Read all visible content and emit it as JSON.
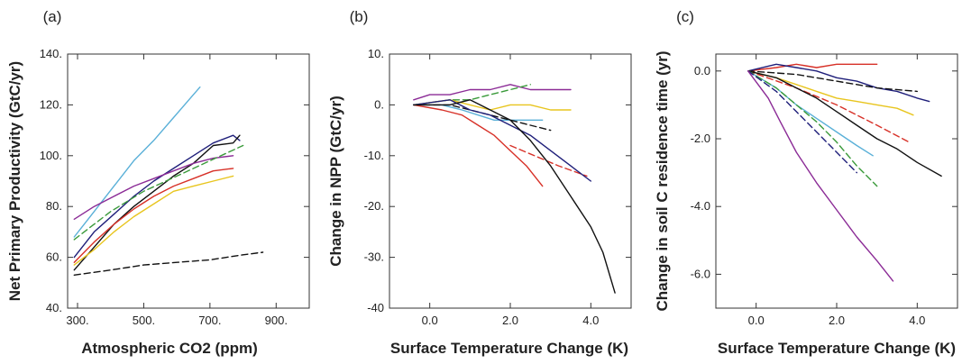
{
  "chart_data": [
    {
      "type": "line",
      "panel_label": "(a)",
      "xlabel": "Atmospheric CO2 (ppm)",
      "ylabel": "Net Primary Productivity (GtC/yr)",
      "xlim": [
        270,
        1000
      ],
      "ylim": [
        40,
        140
      ],
      "xticks": [
        300,
        500,
        700,
        900
      ],
      "xtick_labels": [
        "300.",
        "500.",
        "700.",
        "900."
      ],
      "yticks": [
        40,
        60,
        80,
        100,
        120,
        140
      ],
      "ytick_labels": [
        "40.",
        "60.",
        "80.",
        "100.",
        "120.",
        "140."
      ],
      "grid": false,
      "series": [
        {
          "color": "#5ab0d8",
          "style": "solid",
          "x": [
            290,
            350,
            410,
            470,
            530,
            590,
            650,
            670
          ],
          "y": [
            68,
            78,
            88,
            98,
            106,
            115,
            124,
            127
          ]
        },
        {
          "color": "#1f1f7a",
          "style": "solid",
          "x": [
            290,
            350,
            410,
            470,
            530,
            590,
            650,
            710,
            770,
            790
          ],
          "y": [
            60,
            70,
            77,
            84,
            90,
            95,
            100,
            105,
            108,
            106
          ]
        },
        {
          "color": "#111111",
          "style": "solid",
          "x": [
            290,
            350,
            410,
            470,
            530,
            590,
            650,
            710,
            770,
            790
          ],
          "y": [
            55,
            64,
            73,
            80,
            86,
            92,
            97,
            104,
            105,
            108
          ]
        },
        {
          "color": "#8b2b96",
          "style": "solid",
          "x": [
            290,
            350,
            410,
            470,
            530,
            590,
            650,
            710,
            770
          ],
          "y": [
            75,
            80,
            84,
            88,
            91,
            94,
            97,
            99,
            100
          ]
        },
        {
          "color": "#3a9a3a",
          "style": "dashed",
          "x": [
            290,
            400,
            500,
            600,
            700,
            800
          ],
          "y": [
            67,
            78,
            86,
            92,
            98,
            104
          ]
        },
        {
          "color": "#d73027",
          "style": "solid",
          "x": [
            290,
            350,
            410,
            470,
            530,
            590,
            650,
            710,
            770
          ],
          "y": [
            58,
            66,
            73,
            79,
            84,
            88,
            91,
            94,
            95
          ]
        },
        {
          "color": "#e8c51e",
          "style": "solid",
          "x": [
            290,
            350,
            410,
            470,
            530,
            590,
            650,
            710,
            770
          ],
          "y": [
            57,
            63,
            70,
            76,
            81,
            86,
            88,
            90,
            92
          ]
        },
        {
          "color": "#111111",
          "style": "dashed",
          "x": [
            290,
            400,
            500,
            600,
            700,
            800,
            860
          ],
          "y": [
            53,
            55,
            57,
            58,
            59,
            61,
            62
          ]
        }
      ]
    },
    {
      "type": "line",
      "panel_label": "(b)",
      "xlabel": "Surface Temperature Change (K)",
      "ylabel": "Change in NPP (GtC/yr)",
      "xlim": [
        -1,
        5
      ],
      "ylim": [
        -40,
        10
      ],
      "xticks": [
        0,
        2,
        4
      ],
      "xtick_labels": [
        "0.0",
        "2.0",
        "4.0"
      ],
      "yticks": [
        10,
        0,
        -10,
        -20,
        -30,
        -40
      ],
      "ytick_labels": [
        "10.",
        "0.",
        "-10.",
        "-20.",
        "-30.",
        "-40"
      ],
      "grid": false,
      "series": [
        {
          "color": "#8b2b96",
          "style": "solid",
          "x": [
            -0.4,
            0.0,
            0.5,
            1.0,
            1.5,
            2.0,
            2.5,
            3.0,
            3.5
          ],
          "y": [
            1,
            2,
            2,
            3,
            3,
            4,
            3,
            3,
            3
          ]
        },
        {
          "color": "#3a9a3a",
          "style": "dashed",
          "x": [
            -0.4,
            0.5,
            1.0,
            1.5,
            2.0,
            2.5
          ],
          "y": [
            0,
            1,
            1,
            2,
            3,
            4
          ]
        },
        {
          "color": "#e8c51e",
          "style": "solid",
          "x": [
            -0.4,
            0.5,
            1.0,
            1.5,
            2.0,
            2.5,
            3.0,
            3.5
          ],
          "y": [
            0,
            1,
            0,
            -1,
            0,
            0,
            -1,
            -1
          ]
        },
        {
          "color": "#5ab0d8",
          "style": "solid",
          "x": [
            -0.4,
            0.3,
            0.8,
            1.2,
            1.6,
            2.0,
            2.4,
            2.8
          ],
          "y": [
            0,
            0,
            -1,
            -2,
            -3,
            -3,
            -3,
            -3
          ]
        },
        {
          "color": "#111111",
          "style": "dashed",
          "x": [
            -0.4,
            0.5,
            1.0,
            1.5,
            2.0,
            2.5,
            3.0
          ],
          "y": [
            0,
            0,
            -1,
            -2,
            -3,
            -4,
            -5
          ]
        },
        {
          "color": "#d73027",
          "style": "solid",
          "x": [
            -0.4,
            0.3,
            0.8,
            1.2,
            1.6,
            2.0,
            2.4,
            2.8
          ],
          "y": [
            0,
            -1,
            -2,
            -4,
            -6,
            -9,
            -12,
            -16
          ]
        },
        {
          "color": "#d73027",
          "style": "dashed",
          "x": [
            2.0,
            2.6,
            3.2,
            3.9
          ],
          "y": [
            -8,
            -10,
            -12,
            -14
          ]
        },
        {
          "color": "#1f1f7a",
          "style": "solid",
          "x": [
            -0.4,
            0.5,
            1.0,
            1.5,
            2.0,
            2.5,
            3.0,
            3.5,
            4.0
          ],
          "y": [
            0,
            1,
            -1,
            -2,
            -4,
            -6,
            -9,
            -12,
            -15
          ]
        },
        {
          "color": "#111111",
          "style": "solid",
          "x": [
            -0.4,
            0.5,
            1.0,
            1.5,
            2.0,
            2.5,
            3.0,
            3.5,
            4.0,
            4.3,
            4.6
          ],
          "y": [
            0,
            0,
            1,
            -1,
            -3,
            -7,
            -12,
            -18,
            -24,
            -29,
            -37
          ]
        }
      ]
    },
    {
      "type": "line",
      "panel_label": "(c)",
      "xlabel": "Surface Temperature Change (K)",
      "ylabel": "Change in soil C residence time (yr)",
      "xlim": [
        -1,
        5
      ],
      "ylim": [
        -7,
        0.5
      ],
      "xticks": [
        0,
        2,
        4
      ],
      "xtick_labels": [
        "0.0",
        "2.0",
        "4.0"
      ],
      "yticks": [
        0,
        -2,
        -4,
        -6
      ],
      "ytick_labels": [
        "0.0",
        "-2.0",
        "-4.0",
        "-6.0"
      ],
      "grid": false,
      "series": [
        {
          "color": "#d73027",
          "style": "solid",
          "x": [
            -0.2,
            0.5,
            1.0,
            1.5,
            2.0,
            2.5,
            3.0
          ],
          "y": [
            0.0,
            0.1,
            0.2,
            0.1,
            0.2,
            0.2,
            0.2
          ]
        },
        {
          "color": "#1f1f7a",
          "style": "solid",
          "x": [
            -0.2,
            0.5,
            1.0,
            1.5,
            2.0,
            2.5,
            3.0,
            3.5,
            4.0,
            4.3
          ],
          "y": [
            0.0,
            0.2,
            0.1,
            0.0,
            -0.2,
            -0.3,
            -0.5,
            -0.6,
            -0.8,
            -0.9
          ]
        },
        {
          "color": "#111111",
          "style": "dashed",
          "x": [
            -0.2,
            1.0,
            2.0,
            3.0,
            4.0
          ],
          "y": [
            0.0,
            -0.1,
            -0.3,
            -0.5,
            -0.6
          ]
        },
        {
          "color": "#e8c51e",
          "style": "solid",
          "x": [
            -0.2,
            0.5,
            1.0,
            1.5,
            2.0,
            2.5,
            3.0,
            3.5,
            3.9
          ],
          "y": [
            0.0,
            -0.2,
            -0.4,
            -0.6,
            -0.8,
            -0.9,
            -1.0,
            -1.1,
            -1.3
          ]
        },
        {
          "color": "#d73027",
          "style": "dashed",
          "x": [
            -0.2,
            1.0,
            2.0,
            3.0,
            3.8
          ],
          "y": [
            0.0,
            -0.5,
            -1.0,
            -1.6,
            -2.1
          ]
        },
        {
          "color": "#111111",
          "style": "solid",
          "x": [
            -0.2,
            0.5,
            1.0,
            1.5,
            2.0,
            2.5,
            3.0,
            3.5,
            4.0,
            4.6
          ],
          "y": [
            0.0,
            -0.2,
            -0.5,
            -0.8,
            -1.2,
            -1.6,
            -2.0,
            -2.3,
            -2.7,
            -3.1
          ]
        },
        {
          "color": "#5ab0d8",
          "style": "solid",
          "x": [
            -0.2,
            0.5,
            1.0,
            1.5,
            2.0,
            2.5,
            2.9
          ],
          "y": [
            0.0,
            -0.5,
            -1.0,
            -1.4,
            -1.8,
            -2.2,
            -2.5
          ]
        },
        {
          "color": "#3a9a3a",
          "style": "dashed",
          "x": [
            -0.2,
            0.5,
            1.0,
            1.5,
            2.0,
            2.5,
            3.0
          ],
          "y": [
            0.0,
            -0.5,
            -1.0,
            -1.5,
            -2.1,
            -2.8,
            -3.4
          ]
        },
        {
          "color": "#1f1f7a",
          "style": "dashed",
          "x": [
            -0.2,
            0.5,
            1.0,
            1.5,
            2.0,
            2.5
          ],
          "y": [
            0.0,
            -0.6,
            -1.2,
            -1.8,
            -2.4,
            -3.0
          ]
        },
        {
          "color": "#8b2b96",
          "style": "solid",
          "x": [
            -0.2,
            0.3,
            0.6,
            1.0,
            1.5,
            2.0,
            2.5,
            3.0,
            3.4
          ],
          "y": [
            0.0,
            -0.8,
            -1.5,
            -2.4,
            -3.3,
            -4.1,
            -4.9,
            -5.6,
            -6.2
          ]
        }
      ]
    }
  ]
}
